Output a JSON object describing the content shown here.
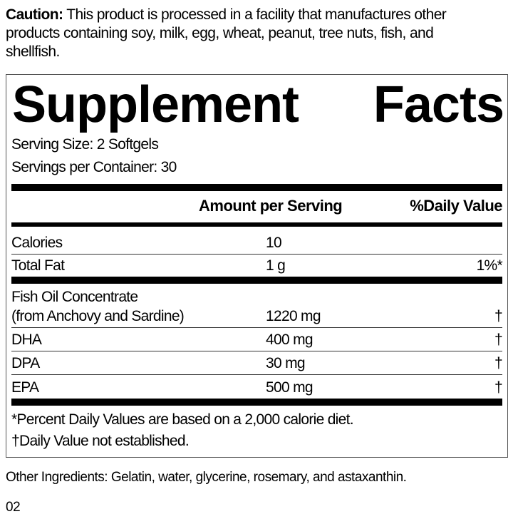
{
  "caution": {
    "label": "Caution:",
    "text": " This product is processed in a facility that manufactures other products containing soy, milk, egg, wheat, peanut, tree nuts, fish, and shellfish."
  },
  "panel": {
    "title_word1": "Supplement",
    "title_word2": "Facts",
    "serving_size": "Serving Size: 2 Softgels",
    "servings_per_container": "Servings per Container: 30",
    "header_amount": "Amount per Serving",
    "header_dv": "%Daily Value",
    "rows": [
      {
        "name": "Calories",
        "amount": "10",
        "dv": ""
      },
      {
        "name": "Total Fat",
        "amount": "1 g",
        "dv": "1%*"
      },
      {
        "name": "Fish Oil Concentrate",
        "name2": "(from Anchovy and Sardine)",
        "amount": "1220 mg",
        "dv": "†"
      },
      {
        "name": "DHA",
        "amount": "400 mg",
        "dv": "†"
      },
      {
        "name": "DPA",
        "amount": "30 mg",
        "dv": "†"
      },
      {
        "name": "EPA",
        "amount": "500 mg",
        "dv": "†"
      }
    ],
    "footnote1": "*Percent Daily Values are based on a 2,000 calorie diet.",
    "footnote2": "†Daily Value not established."
  },
  "other_ingredients": "Other Ingredients: Gelatin, water, glycerine, rosemary, and astaxanthin.",
  "code": "02"
}
